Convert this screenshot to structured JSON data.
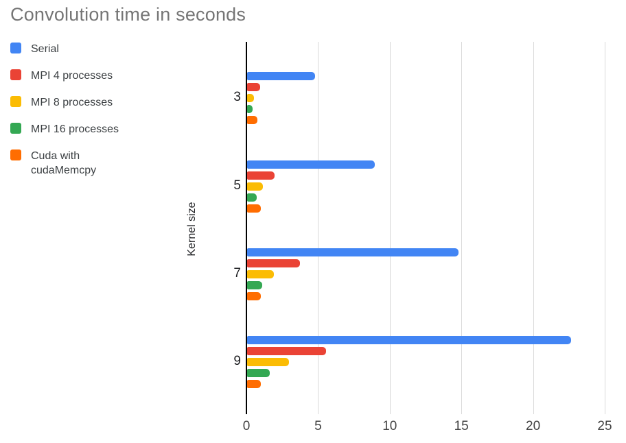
{
  "chart_data": {
    "type": "bar",
    "orientation": "horizontal",
    "title": "Convolution time in seconds",
    "xlabel": "",
    "ylabel": "Kernel size",
    "categories": [
      "3",
      "5",
      "7",
      "9"
    ],
    "series": [
      {
        "name": "Serial",
        "color": "#4285F4",
        "values": [
          4.75,
          8.9,
          14.75,
          22.6
        ]
      },
      {
        "name": "MPI 4 processes",
        "color": "#EA4335",
        "values": [
          0.9,
          1.9,
          3.7,
          5.5
        ]
      },
      {
        "name": "MPI 8 processes",
        "color": "#FBBC04",
        "values": [
          0.48,
          1.1,
          1.85,
          2.9
        ]
      },
      {
        "name": "MPI 16 processes",
        "color": "#34A853",
        "values": [
          0.38,
          0.65,
          1.05,
          1.6
        ]
      },
      {
        "name": "Cuda with cudaMemcpy",
        "color": "#FF6D01",
        "values": [
          0.73,
          0.95,
          0.95,
          0.95
        ]
      }
    ],
    "x_ticks": [
      "0",
      "5",
      "10",
      "15",
      "20",
      "25"
    ],
    "xlim": [
      0,
      25
    ],
    "grid": true,
    "legend_position": "top-left"
  },
  "colors": {
    "title_text": "#757575",
    "legend_text": "#3c4043",
    "axis_text": "#424242",
    "gridline": "#d9d9d9",
    "axis_line": "#000000",
    "background": "#ffffff"
  }
}
